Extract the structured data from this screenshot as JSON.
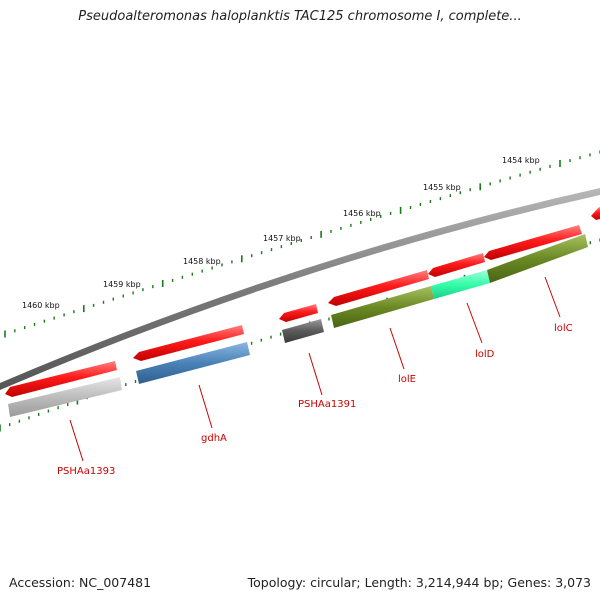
{
  "title": "Pseudoalteromonas haloplanktis TAC125 chromosome I, complete...",
  "footer": {
    "accession": "Accession: NC_007481",
    "summary": "Topology: circular; Length: 3,214,944 bp; Genes: 3,073"
  },
  "scale_labels": [
    "1460 kbp",
    "1459 kbp",
    "1458 kbp",
    "1457 kbp",
    "1456 kbp",
    "1455 kbp",
    "1454 kbp"
  ],
  "gene_labels": [
    "PSHAa1393",
    "gdhA",
    "PSHAa1391",
    "lolE",
    "lolD",
    "lolC"
  ],
  "colors": {
    "backbone": "#7a7a7a",
    "gene": "#ff1a1a",
    "cds_gray": "#bdbdbd",
    "cds_blue": "#4a82b8",
    "cds_dark": "#5a5a5a",
    "cds_olive": "#6b8a24",
    "cds_cyan": "#33ffaa",
    "tick": "#1a7a1a",
    "label": "#cc0000"
  }
}
